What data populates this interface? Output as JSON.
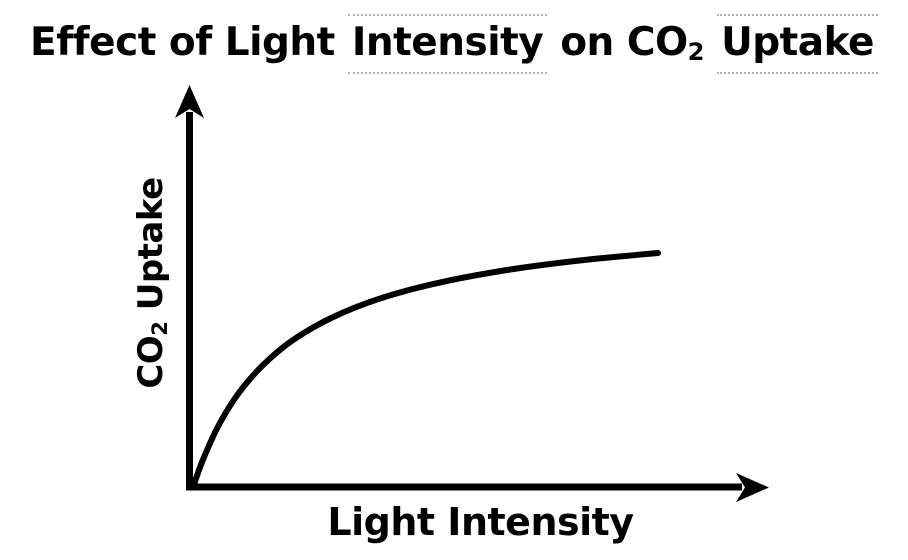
{
  "page": {
    "background_color": "#ffffff",
    "ink_color": "#000000",
    "dotted_marker_color": "#b3b3b3"
  },
  "title": {
    "plain": "Effect of Light Intensity on CO₂ Uptake",
    "segments": [
      {
        "text": "Effect of Light ",
        "dotted": false
      },
      {
        "text": "Intensity",
        "dotted": true
      },
      {
        "text": " on CO",
        "dotted": false
      },
      {
        "text": "2",
        "subscript": true
      },
      {
        "text": " ",
        "dotted": false
      },
      {
        "text": "Uptake",
        "dotted": true
      }
    ]
  },
  "axes": {
    "x_label": "Light Intensity",
    "y_label_prefix": "CO",
    "y_label_sub": "2",
    "y_label_suffix": " Uptake",
    "ticks_shown": false,
    "arrows": {
      "x_axis": "arrow-right",
      "y_axis": "arrow-up"
    }
  },
  "chart_data": {
    "type": "line",
    "title": "Effect of Light Intensity on CO₂ Uptake",
    "xlabel": "Light Intensity",
    "ylabel": "CO₂ Uptake",
    "grid": false,
    "legend": false,
    "axes_numeric": false,
    "x_range": [
      0,
      100
    ],
    "y_range": [
      0,
      100
    ],
    "annotation": "Qualitative saturation curve: CO₂ uptake rises steeply at low light intensity, then levels off (plateaus) at high light intensity; values in relative units estimated from the drawing.",
    "series": [
      {
        "name": "CO₂ uptake vs light intensity",
        "x": [
          0,
          2.2,
          5.4,
          9.7,
          15.1,
          21.5,
          30.1,
          40.9,
          53.8,
          68.8,
          84.9,
          100
        ],
        "y": [
          0,
          11.9,
          25.9,
          39.8,
          52.2,
          62.8,
          72.6,
          81.0,
          87.7,
          93.1,
          97.2,
          100
        ]
      }
    ]
  }
}
